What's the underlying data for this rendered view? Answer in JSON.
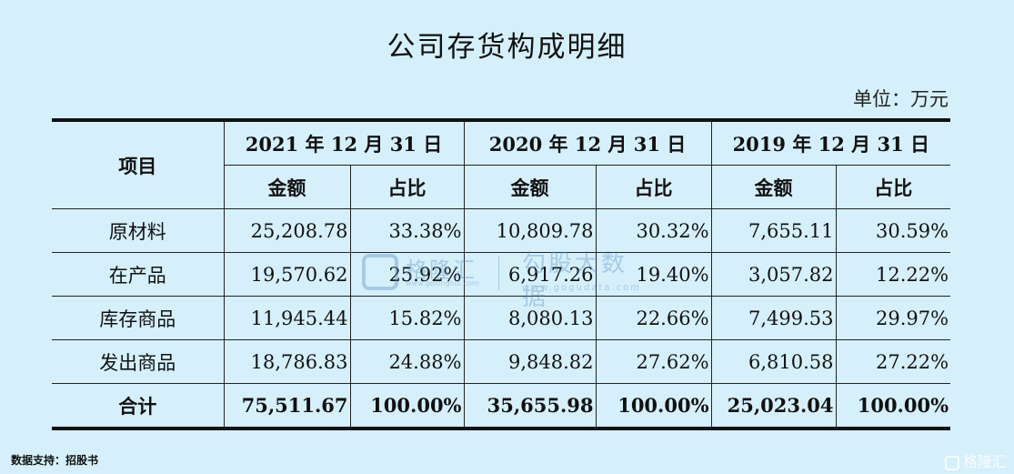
{
  "title": "公司存货构成明细",
  "unit": "单位：万元",
  "table": {
    "item_header": "项目",
    "years": [
      "2021 年 12 月 31 日",
      "2020 年 12 月 31 日",
      "2019 年 12 月 31 日"
    ],
    "sub_headers": [
      "金额",
      "占比"
    ],
    "rows": [
      {
        "label": "原材料",
        "values": [
          "25,208.78",
          "33.38%",
          "10,809.78",
          "30.32%",
          "7,655.11",
          "30.59%"
        ]
      },
      {
        "label": "在产品",
        "values": [
          "19,570.62",
          "25.92%",
          "6,917.26",
          "19.40%",
          "3,057.82",
          "12.22%"
        ]
      },
      {
        "label": "库存商品",
        "values": [
          "11,945.44",
          "15.82%",
          "8,080.13",
          "22.66%",
          "7,499.53",
          "29.97%"
        ]
      },
      {
        "label": "发出商品",
        "values": [
          "18,786.83",
          "24.88%",
          "9,848.82",
          "27.62%",
          "6,810.58",
          "27.22%"
        ]
      },
      {
        "label": "合计",
        "values": [
          "75,511.67",
          "100.00%",
          "35,655.98",
          "100.00%",
          "25,023.04",
          "100.00%"
        ]
      }
    ]
  },
  "watermark": {
    "brand": "格隆汇",
    "brand_sub": "www.gelonghui.com",
    "data_text": "勾股大数据",
    "data_sub": "www.gogudata.com"
  },
  "source": "数据支持：招股书",
  "corner_logo": "格隆汇"
}
